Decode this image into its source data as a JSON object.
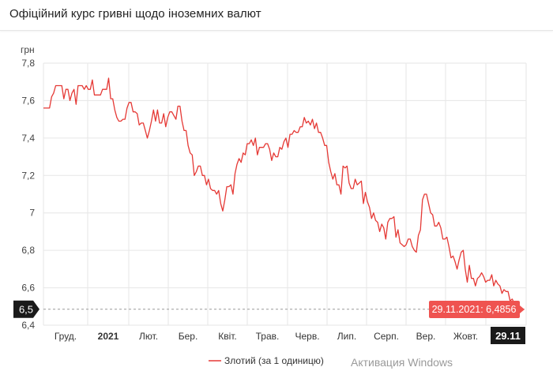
{
  "header": {
    "title": "Офіційний курс гривні щодо іноземних валют"
  },
  "watermark": "Активация Windows",
  "chart_data": {
    "type": "line",
    "ylabel": "грн",
    "ylim": [
      6.4,
      7.8
    ],
    "y_ticks": [
      "6,4",
      "6,6",
      "6,8",
      "7",
      "7,2",
      "7,4",
      "7,6",
      "7,8"
    ],
    "x_ticks": [
      {
        "label": "Груд.",
        "bold": false
      },
      {
        "label": "2021",
        "bold": true
      },
      {
        "label": "Лют.",
        "bold": false
      },
      {
        "label": "Бер.",
        "bold": false
      },
      {
        "label": "Квіт.",
        "bold": false
      },
      {
        "label": "Трав.",
        "bold": false
      },
      {
        "label": "Черв.",
        "bold": false
      },
      {
        "label": "Лип.",
        "bold": false
      },
      {
        "label": "Серп.",
        "bold": false
      },
      {
        "label": "Вер.",
        "bold": false
      },
      {
        "label": "Жовт.",
        "bold": false
      }
    ],
    "crosshair": {
      "y_label": "6,5",
      "x_label": "29.11",
      "tooltip": "29.11.2021: 6,4856",
      "value": 6.4856
    },
    "grid": true,
    "legend_position": "bottom-center",
    "colors": {
      "series": "#e53935",
      "tooltip_bg": "#ef5350",
      "crosshair_label_bg": "#1a1a1a"
    },
    "series": [
      {
        "name": "Злотий (за 1 одиницю)",
        "values": [
          7.56,
          7.56,
          7.56,
          7.56,
          7.62,
          7.64,
          7.68,
          7.68,
          7.68,
          7.68,
          7.61,
          7.66,
          7.66,
          7.6,
          7.64,
          7.66,
          7.58,
          7.68,
          7.68,
          7.68,
          7.66,
          7.68,
          7.66,
          7.66,
          7.71,
          7.63,
          7.63,
          7.63,
          7.63,
          7.66,
          7.66,
          7.66,
          7.72,
          7.61,
          7.61,
          7.55,
          7.51,
          7.49,
          7.49,
          7.5,
          7.5,
          7.56,
          7.59,
          7.59,
          7.54,
          7.54,
          7.53,
          7.47,
          7.48,
          7.48,
          7.44,
          7.4,
          7.44,
          7.49,
          7.55,
          7.49,
          7.55,
          7.48,
          7.48,
          7.53,
          7.46,
          7.51,
          7.54,
          7.54,
          7.52,
          7.5,
          7.57,
          7.57,
          7.49,
          7.44,
          7.44,
          7.36,
          7.32,
          7.31,
          7.2,
          7.22,
          7.25,
          7.25,
          7.2,
          7.2,
          7.15,
          7.18,
          7.13,
          7.12,
          7.12,
          7.1,
          7.12,
          7.05,
          7.01,
          7.07,
          7.14,
          7.14,
          7.15,
          7.1,
          7.21,
          7.26,
          7.29,
          7.27,
          7.32,
          7.31,
          7.37,
          7.37,
          7.39,
          7.36,
          7.4,
          7.31,
          7.35,
          7.35,
          7.35,
          7.37,
          7.37,
          7.34,
          7.28,
          7.32,
          7.3,
          7.3,
          7.35,
          7.34,
          7.38,
          7.4,
          7.35,
          7.42,
          7.42,
          7.44,
          7.43,
          7.43,
          7.46,
          7.46,
          7.51,
          7.48,
          7.49,
          7.47,
          7.5,
          7.45,
          7.48,
          7.43,
          7.43,
          7.4,
          7.36,
          7.36,
          7.27,
          7.22,
          7.18,
          7.21,
          7.15,
          7.15,
          7.1,
          7.25,
          7.24,
          7.25,
          7.16,
          7.13,
          7.13,
          7.18,
          7.15,
          7.16,
          7.17,
          7.05,
          7.11,
          7.06,
          7.03,
          6.97,
          7.0,
          6.96,
          6.95,
          6.9,
          6.94,
          6.92,
          6.86,
          6.95,
          6.97,
          6.97,
          6.98,
          6.87,
          6.91,
          6.84,
          6.83,
          6.82,
          6.83,
          6.86,
          6.86,
          6.82,
          6.8,
          6.79,
          6.88,
          6.91,
          7.07,
          7.1,
          7.1,
          7.05,
          7.0,
          6.99,
          6.93,
          6.93,
          6.95,
          6.92,
          6.86,
          6.86,
          6.87,
          6.82,
          6.76,
          6.77,
          6.74,
          6.7,
          6.75,
          6.79,
          6.8,
          6.7,
          6.63,
          6.72,
          6.65,
          6.65,
          6.61,
          6.65,
          6.66,
          6.68,
          6.66,
          6.63,
          6.64,
          6.64,
          6.67,
          6.61,
          6.64,
          6.62,
          6.61,
          6.57,
          6.59,
          6.58,
          6.58,
          6.53,
          6.54,
          6.52,
          6.48,
          6.49
        ]
      }
    ]
  }
}
